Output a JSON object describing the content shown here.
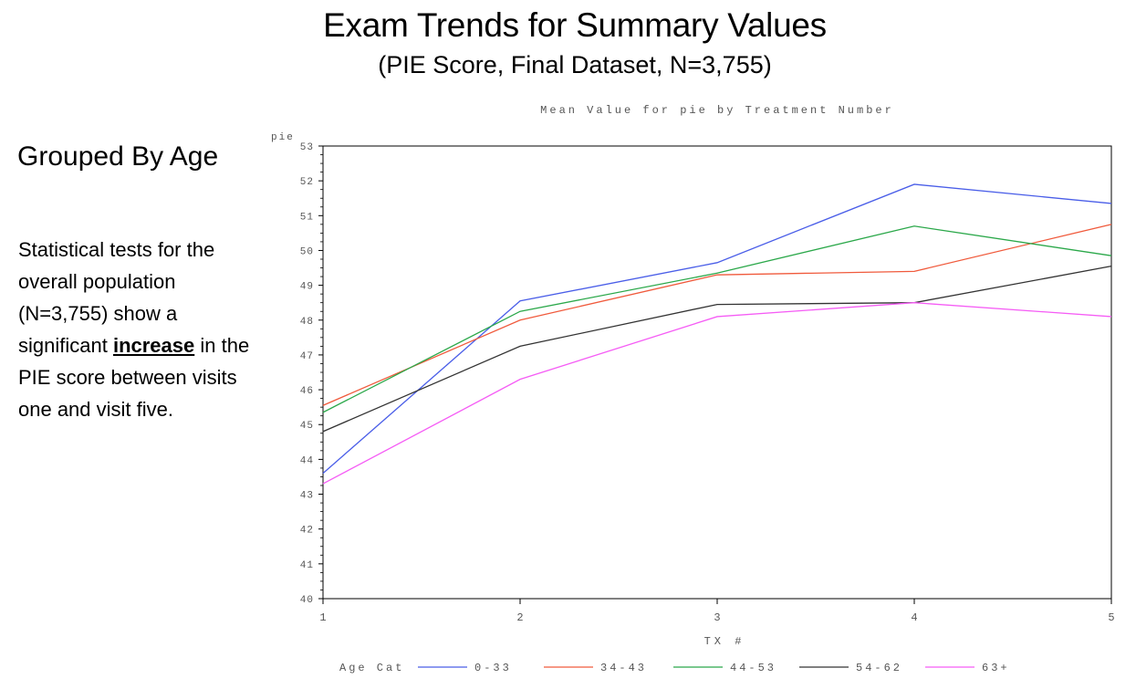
{
  "slide": {
    "title": "Exam Trends for Summary Values",
    "subtitle": "(PIE Score, Final Dataset, N=3,755)"
  },
  "sidebar": {
    "heading": "Grouped By Age",
    "text_before": "Statistical tests for the overall population (N=3,755) show a significant ",
    "emphasis": "increase",
    "text_after": " in the PIE score between visits one and visit five."
  },
  "chart_data": {
    "type": "line",
    "title": "Mean Value for pie by Treatment Number",
    "xlabel": "TX #",
    "ylabel": "pie",
    "x": [
      1,
      2,
      3,
      4,
      5
    ],
    "xlim": [
      1,
      5
    ],
    "ylim": [
      40,
      53
    ],
    "yticks": [
      40,
      41,
      42,
      43,
      44,
      45,
      46,
      47,
      48,
      49,
      50,
      51,
      52,
      53
    ],
    "grid": false,
    "legend_title": "Age Cat",
    "legend_position": "bottom",
    "series": [
      {
        "name": "0-33",
        "color": "#4a5ee8",
        "values": [
          43.6,
          48.55,
          49.65,
          51.9,
          51.35
        ]
      },
      {
        "name": "34-43",
        "color": "#f05a3c",
        "values": [
          45.55,
          48.0,
          49.3,
          49.4,
          50.75
        ]
      },
      {
        "name": "44-53",
        "color": "#2ba84a",
        "values": [
          45.35,
          48.25,
          49.35,
          50.7,
          49.85
        ]
      },
      {
        "name": "54-62",
        "color": "#333333",
        "values": [
          44.8,
          47.25,
          48.45,
          48.5,
          49.55
        ]
      },
      {
        "name": "63+",
        "color": "#f55cf5",
        "values": [
          43.3,
          46.3,
          48.1,
          48.5,
          48.1
        ]
      }
    ]
  }
}
